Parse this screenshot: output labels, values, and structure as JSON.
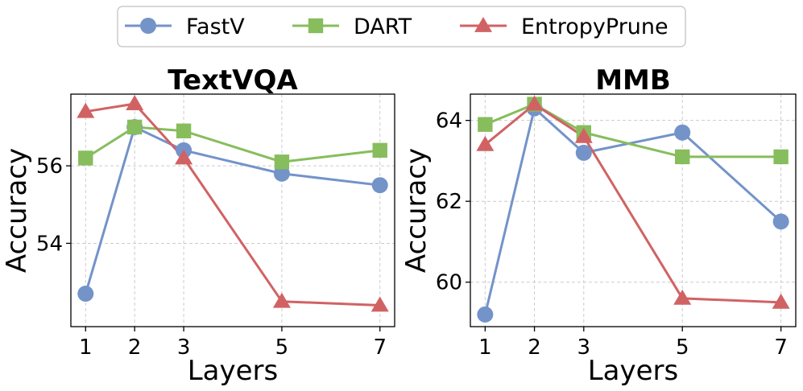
{
  "legend": {
    "entries": [
      {
        "name": "FastV",
        "marker": "circle",
        "color": "#7393c9"
      },
      {
        "name": "DART",
        "marker": "square",
        "color": "#87bd5d"
      },
      {
        "name": "EntropyPrune",
        "marker": "triangle",
        "color": "#d16264"
      }
    ]
  },
  "chart_data": [
    {
      "type": "line",
      "title": "TextVQA",
      "xlabel": "Layers",
      "ylabel": "Accuracy",
      "x": [
        1,
        2,
        3,
        5,
        7
      ],
      "xticks": [
        "1",
        "2",
        "3",
        "5",
        "7"
      ],
      "xlim": [
        0.7,
        7.3
      ],
      "yticks": [
        54,
        56
      ],
      "ytick_labels": [
        "54",
        "56"
      ],
      "ylim": [
        51.85,
        57.85
      ],
      "grid": true,
      "series": [
        {
          "name": "FastV",
          "values": [
            52.7,
            57.0,
            56.4,
            55.8,
            55.5
          ]
        },
        {
          "name": "DART",
          "values": [
            56.2,
            57.0,
            56.9,
            56.1,
            56.4
          ]
        },
        {
          "name": "EntropyPrune",
          "values": [
            57.4,
            57.6,
            56.2,
            52.5,
            52.4
          ]
        }
      ]
    },
    {
      "type": "line",
      "title": "MMB",
      "xlabel": "Layers",
      "ylabel": "Accuracy",
      "x": [
        1,
        2,
        3,
        5,
        7
      ],
      "xticks": [
        "1",
        "2",
        "3",
        "5",
        "7"
      ],
      "xlim": [
        0.7,
        7.3
      ],
      "yticks": [
        60,
        62,
        64
      ],
      "ytick_labels": [
        "60",
        "62",
        "64"
      ],
      "ylim": [
        58.9,
        64.65
      ],
      "grid": true,
      "series": [
        {
          "name": "FastV",
          "values": [
            59.2,
            64.3,
            63.2,
            63.7,
            61.5
          ]
        },
        {
          "name": "DART",
          "values": [
            63.9,
            64.4,
            63.7,
            63.1,
            63.1
          ]
        },
        {
          "name": "EntropyPrune",
          "values": [
            63.4,
            64.4,
            63.6,
            59.6,
            59.5
          ]
        }
      ]
    }
  ]
}
